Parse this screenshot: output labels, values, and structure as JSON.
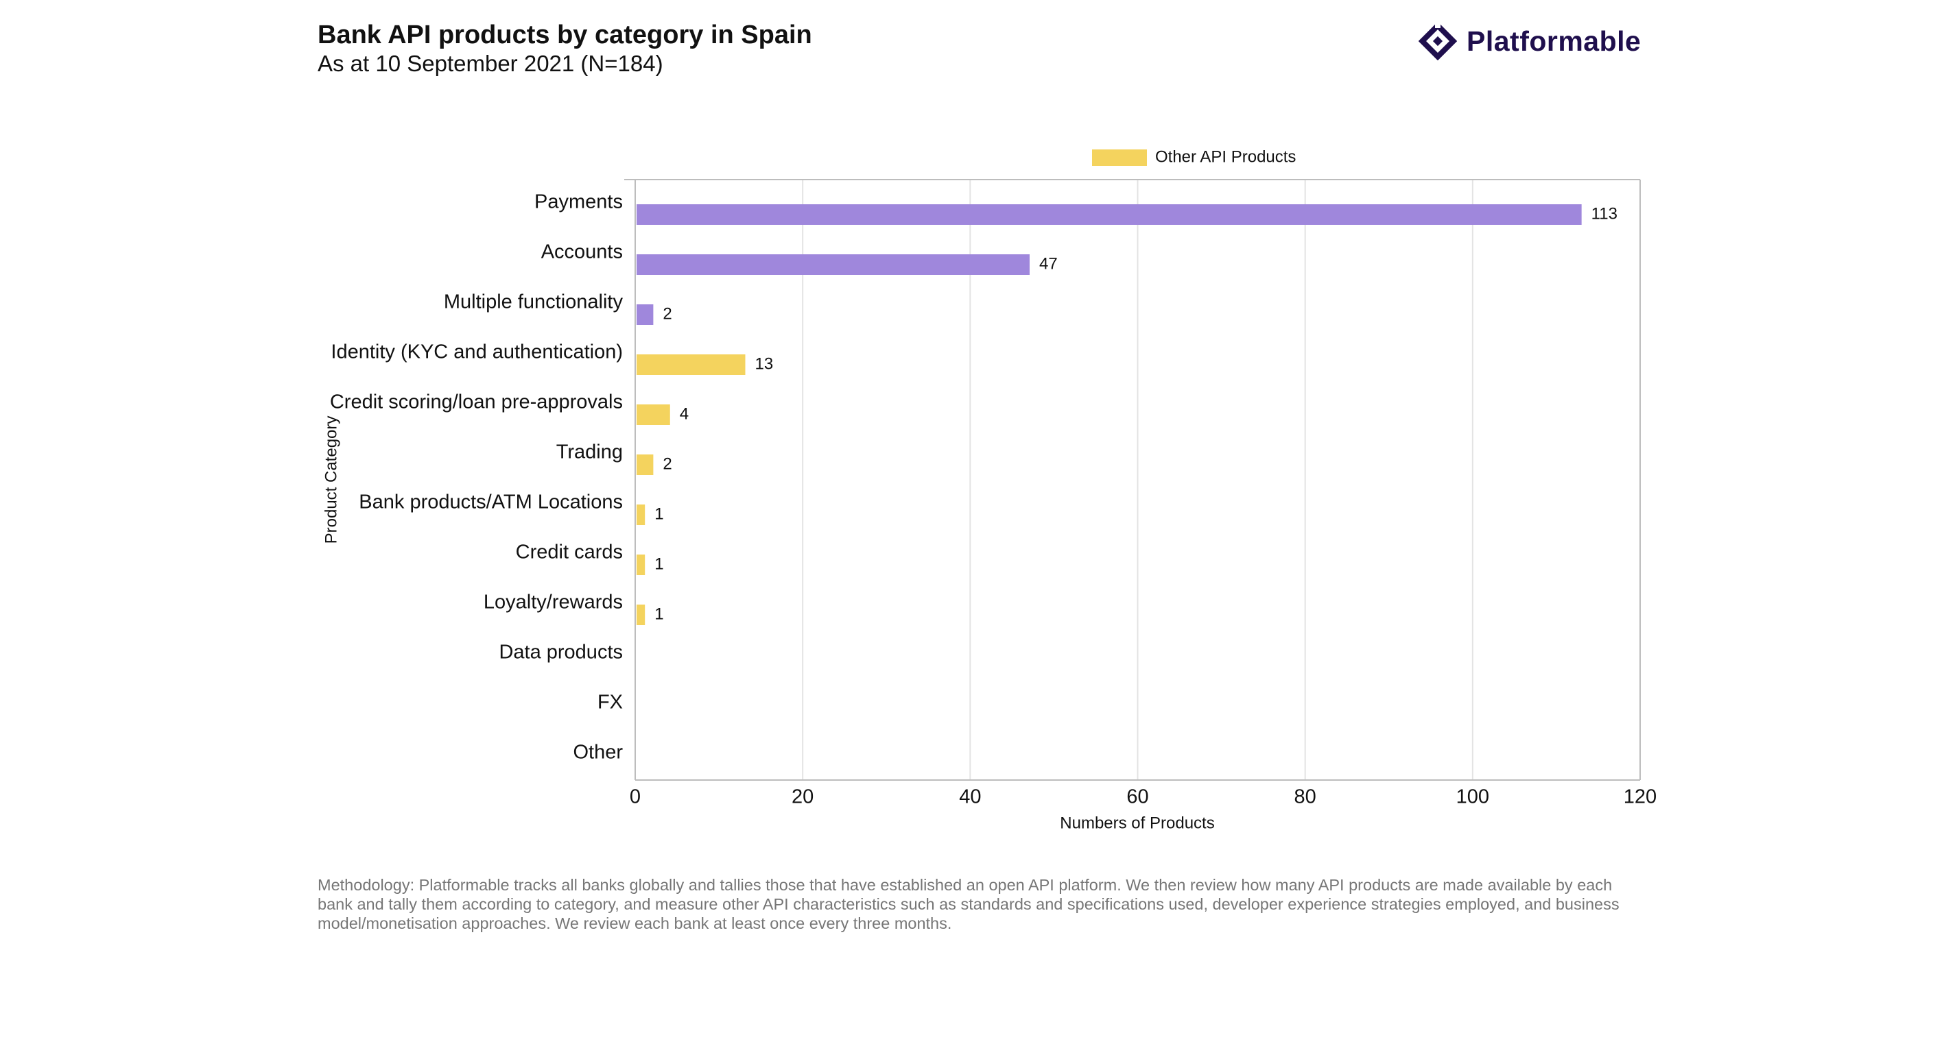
{
  "header": {
    "title": "Bank API products by category in Spain",
    "subtitle": "As at 10 September 2021 (N=184)"
  },
  "brand": {
    "name": "Platformable",
    "color": "#1f0f4d"
  },
  "chart_data": {
    "type": "bar",
    "orientation": "horizontal",
    "xlabel": "Numbers of Products",
    "ylabel": "Product Category",
    "xlim": [
      0,
      120
    ],
    "xticks": [
      0,
      20,
      40,
      60,
      80,
      100,
      120
    ],
    "grid": true,
    "legend": {
      "position": "top",
      "entries": [
        {
          "label": "Other API Products",
          "color": "#f4d35e"
        }
      ]
    },
    "categories": [
      "Payments",
      "Accounts",
      "Multiple functionality",
      "Identity (KYC and authentication)",
      "Credit scoring/loan pre-approvals",
      "Trading",
      "Bank products/ATM Locations",
      "Credit cards",
      "Loyalty/rewards",
      "Data products",
      "FX",
      "Other"
    ],
    "values": [
      113,
      47,
      2,
      13,
      4,
      2,
      1,
      1,
      1,
      null,
      null,
      null
    ],
    "bar_colors": [
      "#9f87dc",
      "#9f87dc",
      "#9f87dc",
      "#f4d35e",
      "#f4d35e",
      "#f4d35e",
      "#f4d35e",
      "#f4d35e",
      "#f4d35e",
      "#f4d35e",
      "#f4d35e",
      "#f4d35e"
    ],
    "data_labels": [
      "113",
      "47",
      "2",
      "13",
      "4",
      "2",
      "1",
      "1",
      "1",
      "",
      "",
      ""
    ]
  },
  "footer": {
    "methodology": "Methodology: Platformable tracks all banks globally and tallies those that have established an open API platform. We then review how many API products are made available by each bank and tally them according to category, and measure other API characteristics such as standards and specifications used, developer experience strategies employed, and business model/monetisation approaches. We review each bank at least once every three months."
  }
}
